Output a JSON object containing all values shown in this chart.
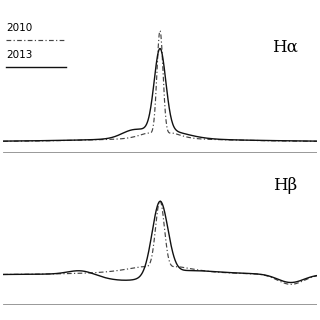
{
  "title_top": "Hα",
  "title_bottom": "Hβ",
  "legend_labels": [
    "2010",
    "2013"
  ],
  "line_colors_2010": "#444444",
  "line_colors_2013": "#111111",
  "background_color": "#ffffff",
  "fig_width": 3.2,
  "fig_height": 3.2,
  "dpi": 100
}
